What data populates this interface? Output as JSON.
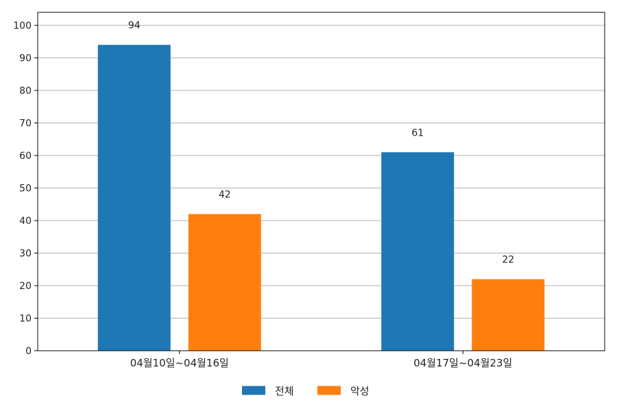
{
  "chart_data": {
    "type": "bar",
    "categories": [
      "04월10일~04월16일",
      "04월17일~04월23일"
    ],
    "series": [
      {
        "name": "전체",
        "values": [
          94,
          61
        ],
        "color": "#1f77b4"
      },
      {
        "name": "악성",
        "values": [
          42,
          22
        ],
        "color": "#ff7f0e"
      }
    ],
    "ylim": [
      0,
      104
    ],
    "yticks": [
      0,
      10,
      20,
      30,
      40,
      50,
      60,
      70,
      80,
      90,
      100
    ],
    "grid": true,
    "legend_position": "bottom-center",
    "data_labels": true
  }
}
